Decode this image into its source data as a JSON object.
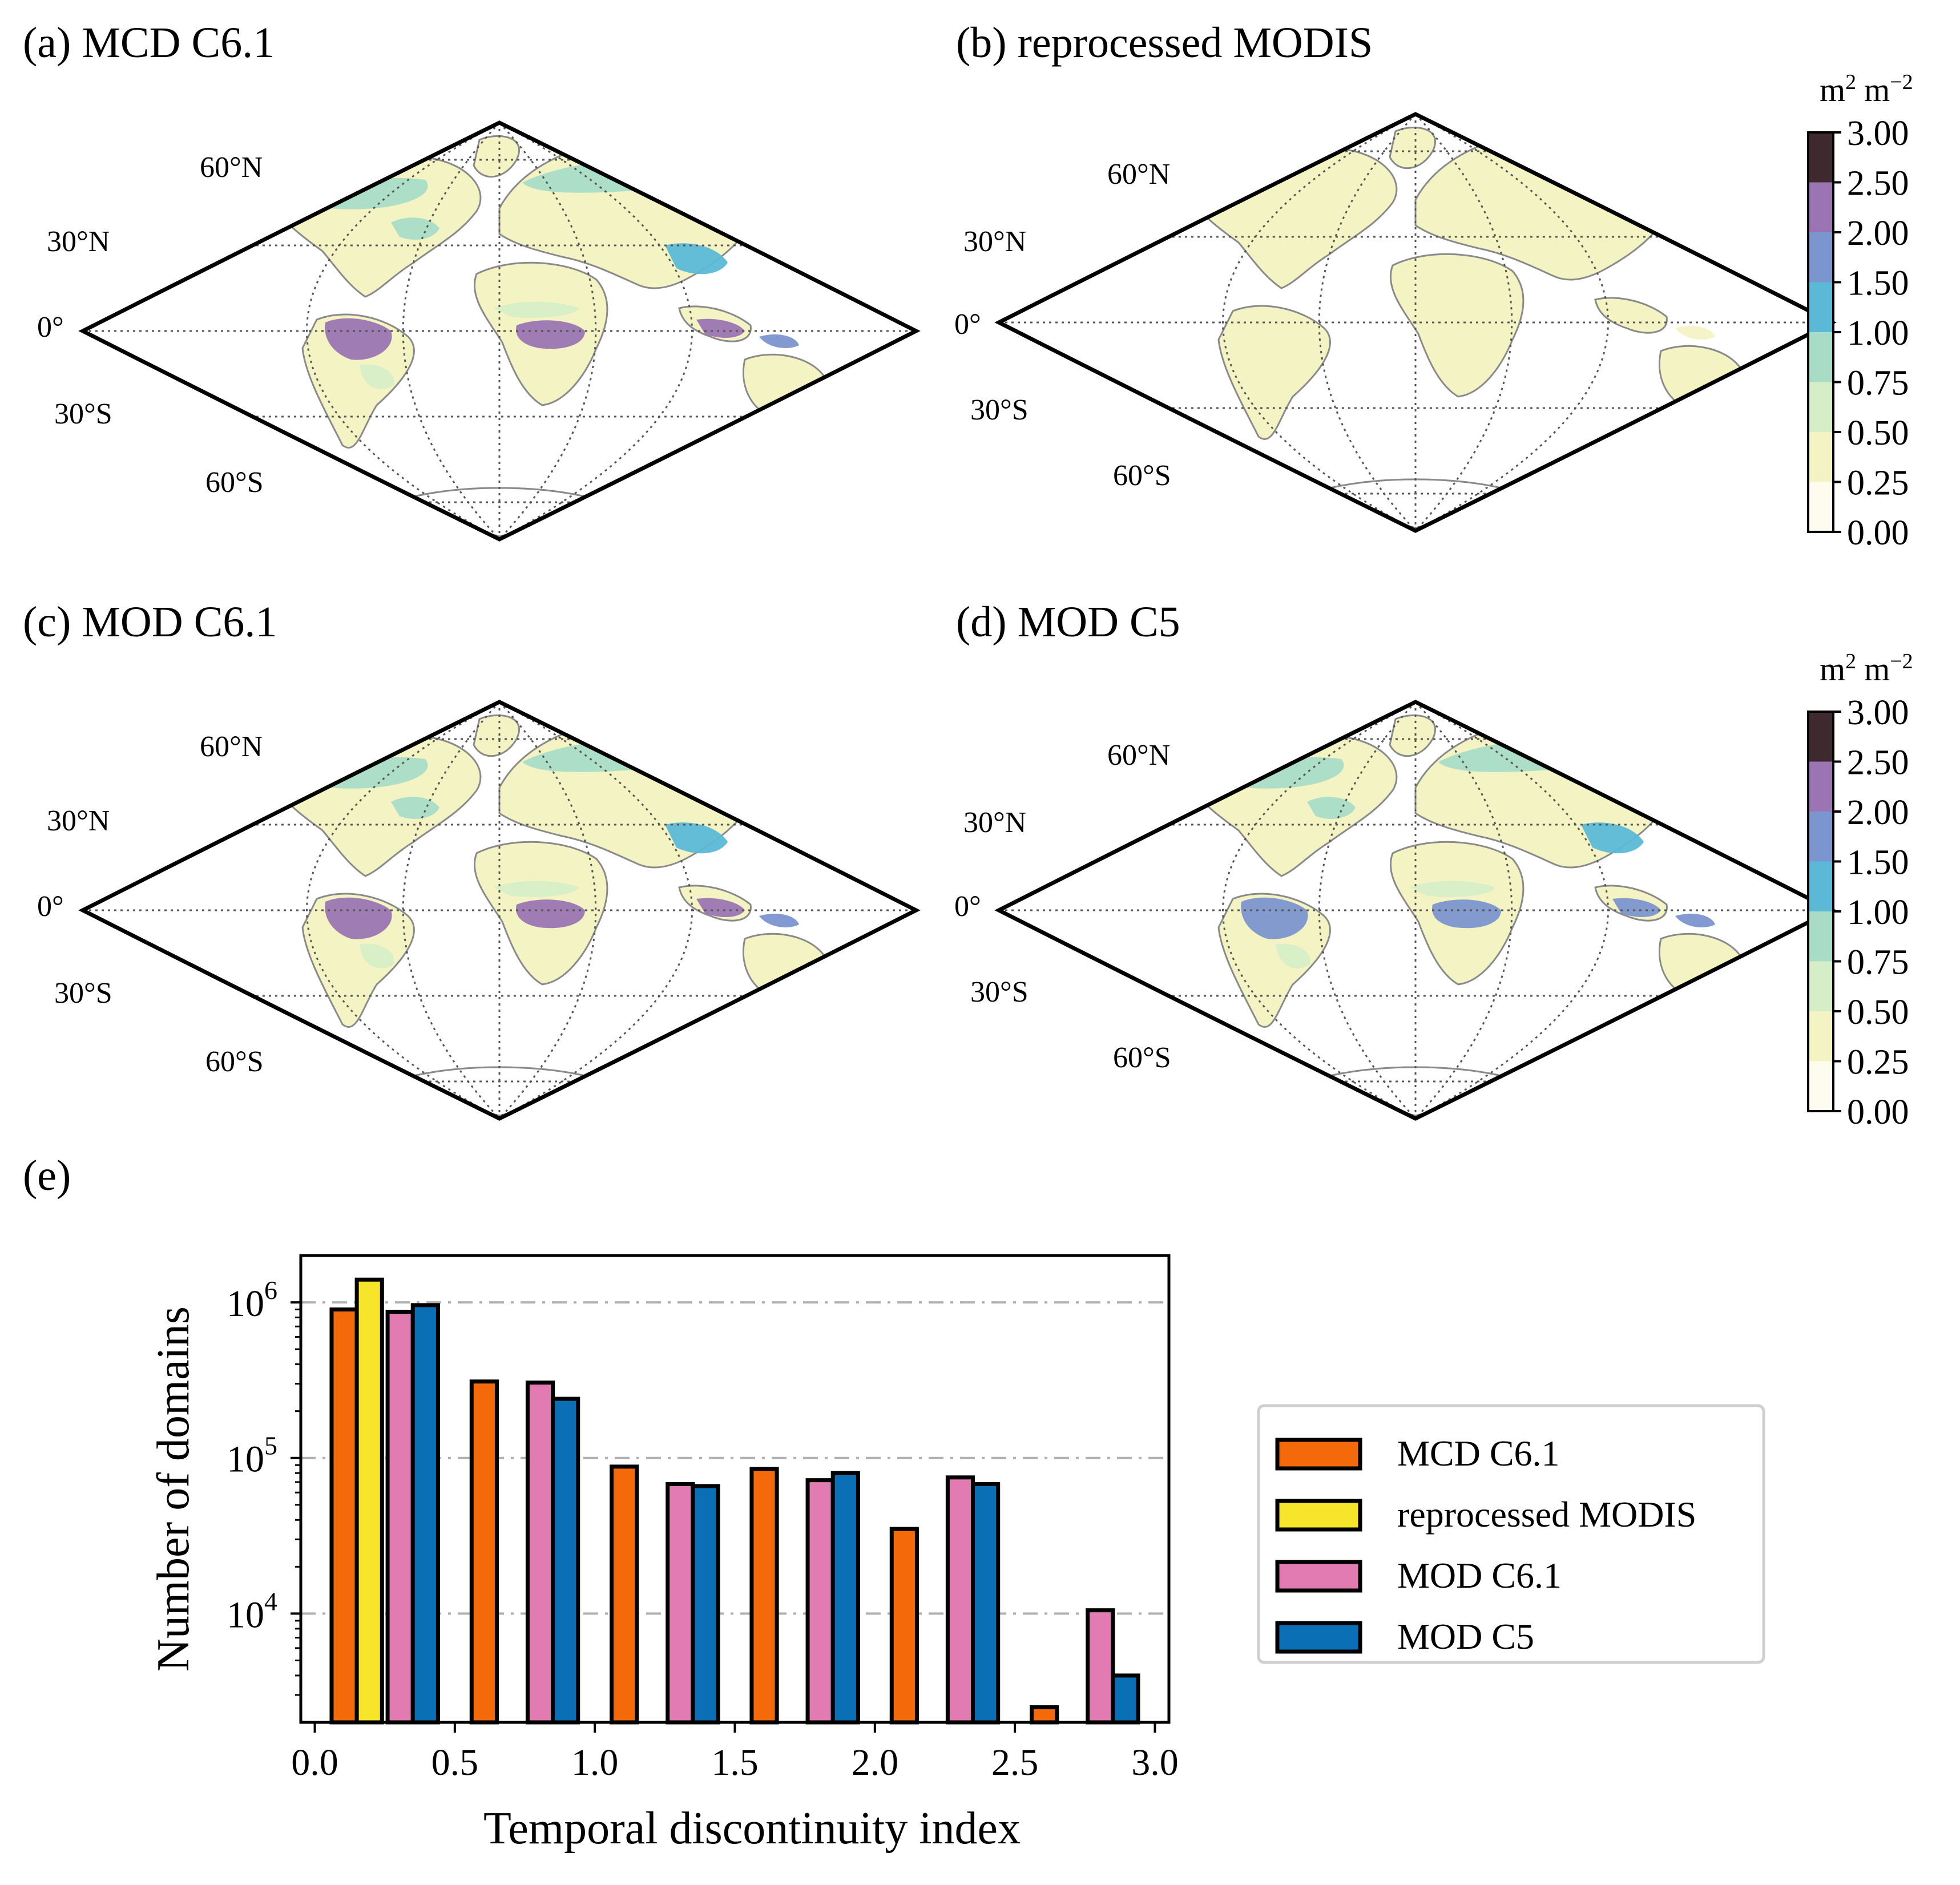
{
  "panels": [
    {
      "id": "a",
      "title": "(a) MCD C6.1",
      "intensity": 1.0
    },
    {
      "id": "b",
      "title": "(b) reprocessed MODIS",
      "intensity": 0.15
    },
    {
      "id": "c",
      "title": "(c) MOD C6.1",
      "intensity": 0.95
    },
    {
      "id": "d",
      "title": "(d) MOD C5",
      "intensity": 0.9
    }
  ],
  "lat_labels": {
    "n60": "60°N",
    "n30": "30°N",
    "eq": "0°",
    "s30": "30°S",
    "s60": "60°S"
  },
  "colorbar": {
    "unit_base": "m",
    "unit_exp": "2",
    "unit_base2": "m",
    "unit_exp2": "−2",
    "ticks": [
      "0.00",
      "0.25",
      "0.50",
      "0.75",
      "1.00",
      "1.50",
      "2.00",
      "2.50",
      "3.00"
    ],
    "colors": [
      "#fefcee",
      "#f4f3c3",
      "#d6eec8",
      "#a9dcc7",
      "#5bb9d7",
      "#7b95cf",
      "#9b75b3",
      "#3e2a2e"
    ]
  },
  "panel_e_title": "(e)",
  "chart_data": {
    "type": "bar",
    "scale": "log",
    "xlabel": "Temporal discontinuity index",
    "ylabel": "Number of domains",
    "xlim": [
      -0.05,
      3.05
    ],
    "ylim": [
      2000,
      2000000
    ],
    "xticks": [
      "0.0",
      "0.5",
      "1.0",
      "1.5",
      "2.0",
      "2.5",
      "3.0"
    ],
    "ytick_values": [
      10000,
      100000,
      1000000
    ],
    "ytick_labels": [
      {
        "base": "10",
        "exp": "4"
      },
      {
        "base": "10",
        "exp": "5"
      },
      {
        "base": "10",
        "exp": "6"
      }
    ],
    "bin_width": 0.5,
    "bar_width": 0.09,
    "series": [
      {
        "name": "MCD C6.1",
        "color": "#f46a0b",
        "offset": 0.105,
        "values": [
          900000,
          310000,
          88000,
          85000,
          35000,
          2500
        ]
      },
      {
        "name": "reprocessed MODIS",
        "color": "#f7e52c",
        "offset": 0.195,
        "values": [
          1400000,
          0,
          0,
          0,
          0,
          0
        ]
      },
      {
        "name": "MOD C6.1",
        "color": "#e27bb1",
        "offset": 0.305,
        "values": [
          870000,
          305000,
          68000,
          72000,
          75000,
          10500
        ]
      },
      {
        "name": "MOD C5",
        "color": "#0a6fb5",
        "offset": 0.395,
        "values": [
          960000,
          240000,
          66000,
          80000,
          68000,
          4000
        ]
      }
    ]
  }
}
